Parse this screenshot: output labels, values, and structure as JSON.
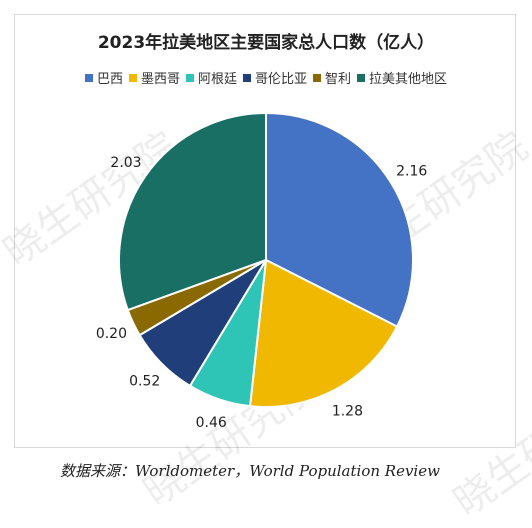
{
  "watermark": "晓生研究院",
  "source": "数据来源：Worldometer，World Population Review",
  "chart_data": {
    "type": "pie",
    "title": "2023年拉美地区主要国家总人口数（亿人）",
    "legend_position": "top",
    "slices": [
      {
        "name": "巴西",
        "value": 2.16,
        "label": "2.16",
        "color": "#4472c4"
      },
      {
        "name": "墨西哥",
        "value": 1.28,
        "label": "1.28",
        "color": "#f0b800"
      },
      {
        "name": "阿根廷",
        "value": 0.46,
        "label": "0.46",
        "color": "#2ec4b6"
      },
      {
        "name": "哥伦比亚",
        "value": 0.52,
        "label": "0.52",
        "color": "#203f7a"
      },
      {
        "name": "智利",
        "value": 0.2,
        "label": "0.20",
        "color": "#8a6a00"
      },
      {
        "name": "拉美其他地区",
        "value": 2.03,
        "label": "2.03",
        "color": "#1a6f64"
      }
    ]
  }
}
